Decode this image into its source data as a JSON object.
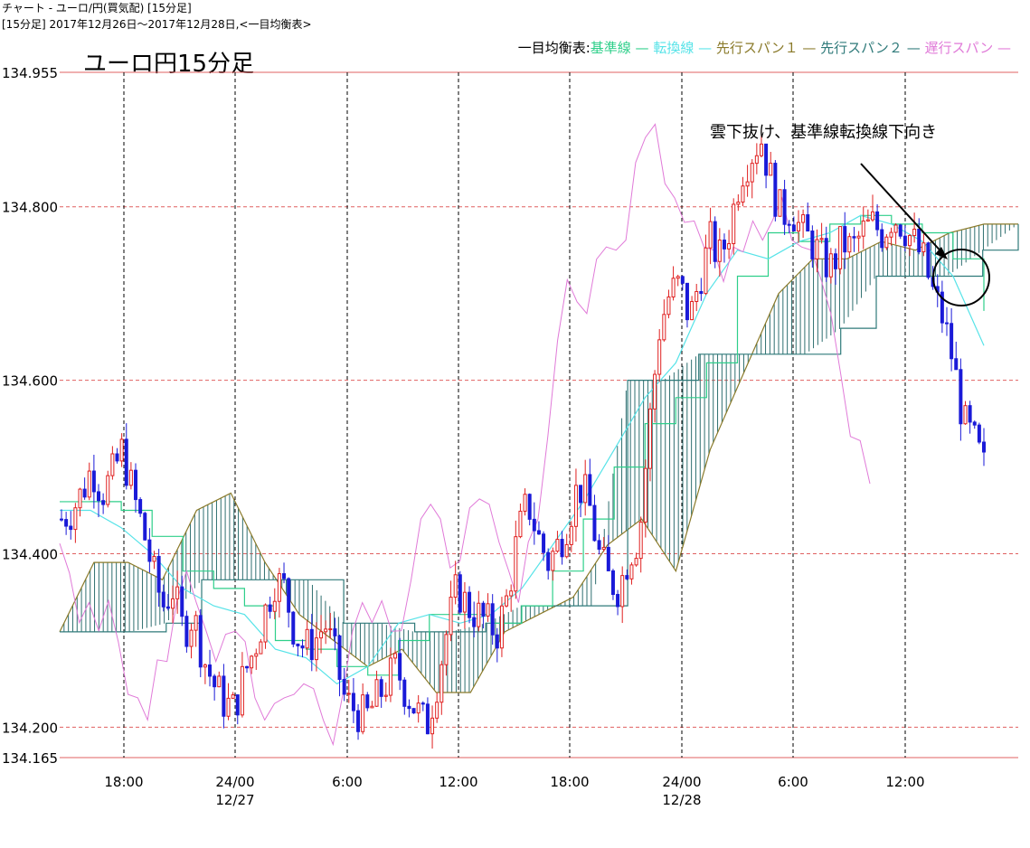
{
  "header": {
    "line1": "チャート - ユーロ/円(買気配)  [15分足]",
    "line2": "[15分足]  2017年12月26日～2017年12月28日,<一目均衡表>"
  },
  "chart_data": {
    "type": "candlestick",
    "title": "ユーロ円15分足",
    "indicator_label": "一目均衡表:",
    "legend": [
      {
        "name": "基準線",
        "color": "#2ecf8a"
      },
      {
        "name": "転換線",
        "color": "#57e3e8"
      },
      {
        "name": "先行スパン１",
        "color": "#8a7a2a"
      },
      {
        "name": "先行スパン２",
        "color": "#2f7a7a"
      },
      {
        "name": "遅行スパン",
        "color": "#e07ad8"
      }
    ],
    "y_ticks": [
      "134.955",
      "134.800",
      "134.600",
      "134.400",
      "134.200",
      "134.165"
    ],
    "ylim": [
      134.165,
      134.955
    ],
    "x_ticks": [
      {
        "label": "18:00",
        "sub": ""
      },
      {
        "label": "24/00",
        "sub": "12/27"
      },
      {
        "label": "6:00",
        "sub": ""
      },
      {
        "label": "12:00",
        "sub": ""
      },
      {
        "label": "18:00",
        "sub": ""
      },
      {
        "label": "24/00",
        "sub": "12/28"
      },
      {
        "label": "6:00",
        "sub": ""
      },
      {
        "label": "12:00",
        "sub": ""
      }
    ],
    "annotation": "雲下抜け、基準線転換線下向き",
    "colors": {
      "up": "#e02020",
      "down": "#1a1ad8",
      "cloud": "#2f6f70",
      "grid": "#e06060"
    },
    "ohlc_keypoints": [
      [
        134.44,
        134.45,
        134.47,
        134.5,
        134.47,
        134.49,
        134.52,
        134.47,
        134.43,
        134.38,
        134.34,
        134.36,
        134.31,
        134.33,
        134.28,
        134.25,
        134.23,
        134.22,
        134.26,
        134.29,
        134.33,
        134.37,
        134.36,
        134.31,
        134.29,
        134.3,
        134.32,
        134.28,
        134.23,
        134.22,
        134.21,
        134.23,
        134.25,
        134.27,
        134.24,
        134.22,
        134.2,
        134.25,
        134.31,
        134.36,
        134.34,
        134.33,
        134.32,
        134.31,
        134.35,
        134.42,
        134.46,
        134.42,
        134.39,
        134.41,
        134.44,
        134.48,
        134.46,
        134.4,
        134.37,
        134.36,
        134.4,
        134.42,
        134.55,
        134.66,
        134.7,
        134.71,
        134.67,
        134.72,
        134.76,
        134.74,
        134.78,
        134.84,
        134.86,
        134.88,
        134.83,
        134.79,
        134.8,
        134.77,
        134.76,
        134.74,
        134.73,
        134.76,
        134.75,
        134.77,
        134.78,
        134.77,
        134.79,
        134.78,
        134.76,
        134.74,
        134.7,
        134.67,
        134.62,
        134.55,
        134.53,
        134.5
      ]
    ],
    "kijun": [
      134.46,
      134.46,
      134.45,
      134.42,
      134.38,
      134.36,
      134.34,
      134.3,
      134.29,
      134.27,
      134.26,
      134.3,
      134.33,
      134.33,
      134.32,
      134.34,
      134.38,
      134.44,
      134.5,
      134.55,
      134.58,
      134.62,
      134.72,
      134.77,
      134.76,
      134.78,
      134.79,
      134.78,
      134.77,
      134.74,
      134.68
    ],
    "tenkan": [
      134.45,
      134.45,
      134.43,
      134.4,
      134.36,
      134.34,
      134.33,
      134.29,
      134.28,
      134.25,
      134.27,
      134.32,
      134.33,
      134.32,
      134.33,
      134.36,
      134.41,
      134.46,
      134.52,
      134.58,
      134.62,
      134.7,
      134.75,
      134.74,
      134.76,
      134.77,
      134.79,
      134.78,
      134.76,
      134.72,
      134.64
    ],
    "senkou1": [
      134.31,
      134.39,
      134.39,
      134.37,
      134.45,
      134.47,
      134.39,
      134.33,
      134.3,
      134.27,
      134.29,
      134.24,
      134.24,
      134.31,
      134.33,
      134.35,
      134.41,
      134.44,
      134.38,
      134.52,
      134.61,
      134.7,
      134.74,
      134.74,
      134.76,
      134.75,
      134.77,
      134.78,
      134.78
    ],
    "senkou2": [
      134.31,
      134.31,
      134.31,
      134.32,
      134.37,
      134.37,
      134.37,
      134.37,
      134.32,
      134.32,
      134.31,
      134.31,
      134.32,
      134.34,
      134.34,
      134.34,
      134.6,
      134.6,
      134.63,
      134.63,
      134.63,
      134.63,
      134.66,
      134.72,
      134.72,
      134.72,
      134.75,
      134.78
    ]
  }
}
